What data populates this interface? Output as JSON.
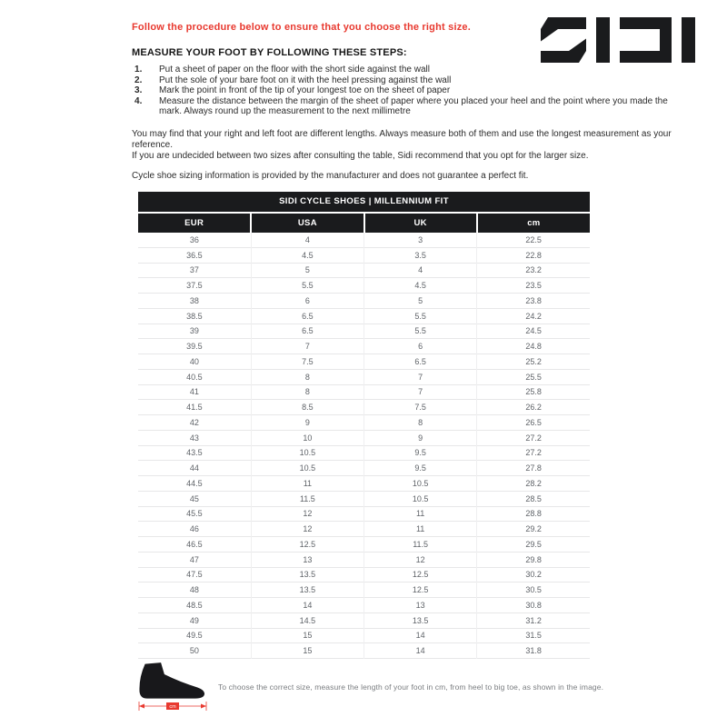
{
  "header": {
    "intro": "Follow the procedure below to ensure that you choose the right size.",
    "logo": "SIDI"
  },
  "instructions": {
    "heading": "MEASURE YOUR FOOT BY FOLLOWING THESE STEPS:",
    "steps": [
      "Put a sheet of paper on the floor with the short side against the wall",
      "Put the sole of your bare foot on it with the heel pressing against the wall",
      "Mark the point in front of the tip of your longest toe on the sheet of paper",
      "Measure the distance between the margin of the sheet of paper where you placed your heel and the point where you made the mark. Always round up the measurement to the next millimetre"
    ],
    "note_length": "You may find that your right and left foot are different lengths. Always measure both of them and use the longest measurement as your reference.",
    "note_sizes": "If you are undecided between two sizes after consulting the table, Sidi recommend that you opt for the larger size.",
    "disclaimer": "Cycle shoe sizing information is provided by the manufacturer and does not guarantee a perfect fit."
  },
  "table": {
    "title": "SIDI CYCLE SHOES | MILLENNIUM FIT",
    "columns": [
      "EUR",
      "USA",
      "UK",
      "cm"
    ],
    "rows": [
      [
        "36",
        "4",
        "3",
        "22.5"
      ],
      [
        "36.5",
        "4.5",
        "3.5",
        "22.8"
      ],
      [
        "37",
        "5",
        "4",
        "23.2"
      ],
      [
        "37.5",
        "5.5",
        "4.5",
        "23.5"
      ],
      [
        "38",
        "6",
        "5",
        "23.8"
      ],
      [
        "38.5",
        "6.5",
        "5.5",
        "24.2"
      ],
      [
        "39",
        "6.5",
        "5.5",
        "24.5"
      ],
      [
        "39.5",
        "7",
        "6",
        "24.8"
      ],
      [
        "40",
        "7.5",
        "6.5",
        "25.2"
      ],
      [
        "40.5",
        "8",
        "7",
        "25.5"
      ],
      [
        "41",
        "8",
        "7",
        "25.8"
      ],
      [
        "41.5",
        "8.5",
        "7.5",
        "26.2"
      ],
      [
        "42",
        "9",
        "8",
        "26.5"
      ],
      [
        "43",
        "10",
        "9",
        "27.2"
      ],
      [
        "43.5",
        "10.5",
        "9.5",
        "27.2"
      ],
      [
        "44",
        "10.5",
        "9.5",
        "27.8"
      ],
      [
        "44.5",
        "11",
        "10.5",
        "28.2"
      ],
      [
        "45",
        "11.5",
        "10.5",
        "28.5"
      ],
      [
        "45.5",
        "12",
        "11",
        "28.8"
      ],
      [
        "46",
        "12",
        "11",
        "29.2"
      ],
      [
        "46.5",
        "12.5",
        "11.5",
        "29.5"
      ],
      [
        "47",
        "13",
        "12",
        "29.8"
      ],
      [
        "47.5",
        "13.5",
        "12.5",
        "30.2"
      ],
      [
        "48",
        "13.5",
        "12.5",
        "30.5"
      ],
      [
        "48.5",
        "14",
        "13",
        "30.8"
      ],
      [
        "49",
        "14.5",
        "13.5",
        "31.2"
      ],
      [
        "49.5",
        "15",
        "14",
        "31.5"
      ],
      [
        "50",
        "15",
        "14",
        "31.8"
      ]
    ]
  },
  "footer": {
    "caption": "To choose the correct size, measure the length of your foot in cm, from heel to big toe, as shown in the image.",
    "arrow_label": "cm"
  },
  "colors": {
    "accent_red": "#e8392f",
    "header_black": "#1a1b1d",
    "cell_text": "#5f6368"
  }
}
